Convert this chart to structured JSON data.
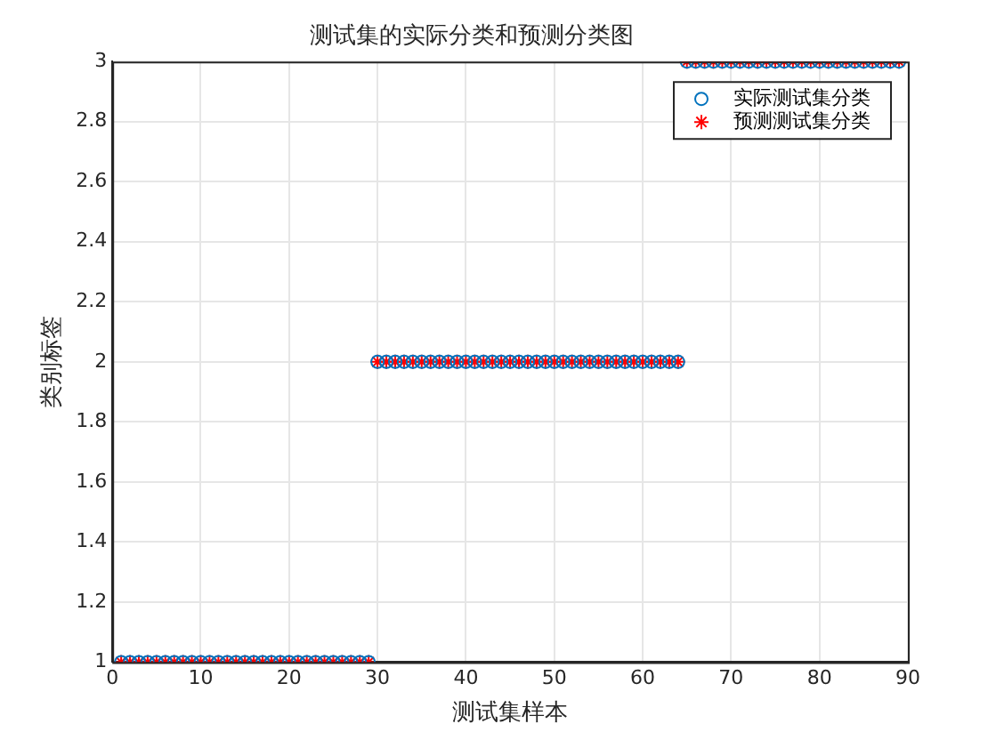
{
  "chart_data": {
    "type": "scatter",
    "title": "测试集的实际分类和预测分类图",
    "xlabel": "测试集样本",
    "ylabel": "类别标签",
    "x": [
      1,
      2,
      3,
      4,
      5,
      6,
      7,
      8,
      9,
      10,
      11,
      12,
      13,
      14,
      15,
      16,
      17,
      18,
      19,
      20,
      21,
      22,
      23,
      24,
      25,
      26,
      27,
      28,
      29,
      30,
      31,
      32,
      33,
      34,
      35,
      36,
      37,
      38,
      39,
      40,
      41,
      42,
      43,
      44,
      45,
      46,
      47,
      48,
      49,
      50,
      51,
      52,
      53,
      54,
      55,
      56,
      57,
      58,
      59,
      60,
      61,
      62,
      63,
      64,
      65,
      66,
      67,
      68,
      69,
      70,
      71,
      72,
      73,
      74,
      75,
      76,
      77,
      78,
      79,
      80,
      81,
      82,
      83,
      84,
      85,
      86,
      87,
      88,
      89
    ],
    "series": [
      {
        "name": "实际测试集分类",
        "color": "#0072bd",
        "marker": "circle",
        "values": [
          1,
          1,
          1,
          1,
          1,
          1,
          1,
          1,
          1,
          1,
          1,
          1,
          1,
          1,
          1,
          1,
          1,
          1,
          1,
          1,
          1,
          1,
          1,
          1,
          1,
          1,
          1,
          1,
          1,
          2,
          2,
          2,
          2,
          2,
          2,
          2,
          2,
          2,
          2,
          2,
          2,
          2,
          2,
          2,
          2,
          2,
          2,
          2,
          2,
          2,
          2,
          2,
          2,
          2,
          2,
          2,
          2,
          2,
          2,
          2,
          2,
          2,
          2,
          2,
          3,
          3,
          3,
          3,
          3,
          3,
          3,
          3,
          3,
          3,
          3,
          3,
          3,
          3,
          3,
          3,
          3,
          3,
          3,
          3,
          3,
          3,
          3,
          3,
          3
        ]
      },
      {
        "name": "预测测试集分类",
        "color": "#ff0000",
        "marker": "cross",
        "values": [
          1,
          1,
          1,
          1,
          1,
          1,
          1,
          1,
          1,
          1,
          1,
          1,
          1,
          1,
          1,
          1,
          1,
          1,
          1,
          1,
          1,
          1,
          1,
          1,
          1,
          1,
          1,
          1,
          1,
          2,
          2,
          2,
          2,
          2,
          2,
          2,
          2,
          2,
          2,
          2,
          2,
          2,
          2,
          2,
          2,
          2,
          2,
          2,
          2,
          2,
          2,
          2,
          2,
          2,
          2,
          2,
          2,
          2,
          2,
          2,
          2,
          2,
          2,
          2,
          3,
          3,
          3,
          3,
          3,
          3,
          3,
          3,
          3,
          3,
          3,
          3,
          3,
          3,
          3,
          3,
          3,
          3,
          3,
          3,
          3,
          3,
          3,
          3,
          3
        ]
      }
    ],
    "xlim": [
      0,
      90
    ],
    "xticks": [
      0,
      10,
      20,
      30,
      40,
      50,
      60,
      70,
      80,
      90
    ],
    "ylim": [
      1,
      3
    ],
    "yticks": [
      1,
      1.2,
      1.4,
      1.6,
      1.8,
      2,
      2.2,
      2.4,
      2.6,
      2.8,
      3
    ],
    "grid": true,
    "legend": "top right"
  }
}
